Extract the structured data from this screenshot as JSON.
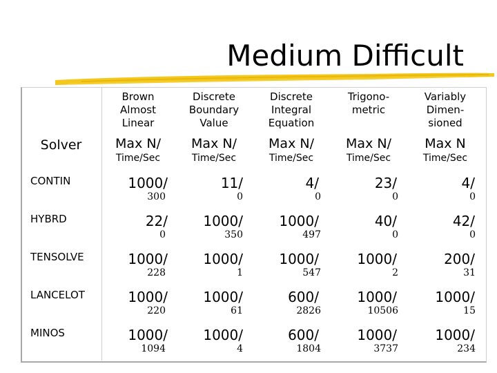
{
  "title": "Medium Difficult",
  "colors": {
    "underline": "#f2c40f"
  },
  "table": {
    "solver_header": "Solver",
    "columns": [
      {
        "line1": "Brown",
        "line2": "Almost",
        "line3": "Linear",
        "maxn": "Max N/",
        "unit": "Time/Sec"
      },
      {
        "line1": "Discrete",
        "line2": "Boundary",
        "line3": "Value",
        "maxn": "Max N/",
        "unit": "Time/Sec"
      },
      {
        "line1": "Discrete",
        "line2": "Integral",
        "line3": "Equation",
        "maxn": "Max N/",
        "unit": "Time/Sec"
      },
      {
        "line1": "Trigono-",
        "line2": "metric",
        "line3": "",
        "maxn": "Max N/",
        "unit": "Time/Sec"
      },
      {
        "line1": "Variably",
        "line2": "Dimen-",
        "line3": "sioned",
        "maxn": "Max N",
        "unit": "Time/Sec"
      }
    ],
    "rows": [
      {
        "solver": "CONTIN",
        "cells": [
          {
            "n": "1000/",
            "t": "300"
          },
          {
            "n": "11/",
            "t": "0"
          },
          {
            "n": "4/",
            "t": "0"
          },
          {
            "n": "23/",
            "t": "0"
          },
          {
            "n": "4/",
            "t": "0"
          }
        ]
      },
      {
        "solver": "HYBRD",
        "cells": [
          {
            "n": "22/",
            "t": "0"
          },
          {
            "n": "1000/",
            "t": "350"
          },
          {
            "n": "1000/",
            "t": "497"
          },
          {
            "n": "40/",
            "t": "0"
          },
          {
            "n": "42/",
            "t": "0"
          }
        ]
      },
      {
        "solver": "TENSOLVE",
        "cells": [
          {
            "n": "1000/",
            "t": "228"
          },
          {
            "n": "1000/",
            "t": "1"
          },
          {
            "n": "1000/",
            "t": "547"
          },
          {
            "n": "1000/",
            "t": "2"
          },
          {
            "n": "200/",
            "t": "31"
          }
        ]
      },
      {
        "solver": "LANCELOT",
        "cells": [
          {
            "n": "1000/",
            "t": "220"
          },
          {
            "n": "1000/",
            "t": "61"
          },
          {
            "n": "600/",
            "t": "2826"
          },
          {
            "n": "1000/",
            "t": "10506"
          },
          {
            "n": "1000/",
            "t": "15"
          }
        ]
      },
      {
        "solver": "MINOS",
        "cells": [
          {
            "n": "1000/",
            "t": "1094"
          },
          {
            "n": "1000/",
            "t": "4"
          },
          {
            "n": "600/",
            "t": "1804"
          },
          {
            "n": "1000/",
            "t": "3737"
          },
          {
            "n": "1000/",
            "t": "234"
          }
        ]
      }
    ]
  }
}
